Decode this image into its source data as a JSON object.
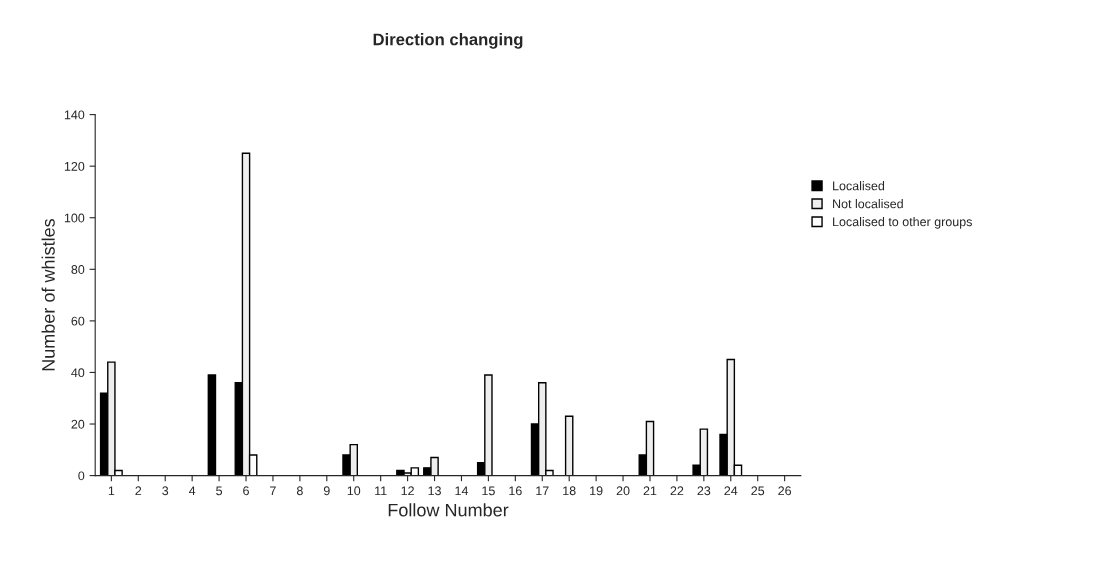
{
  "chart_data": {
    "type": "bar",
    "title": "Direction changing",
    "xlabel": "Follow Number",
    "ylabel": "Number of whistles",
    "categories": [
      "1",
      "2",
      "3",
      "4",
      "5",
      "6",
      "7",
      "8",
      "9",
      "10",
      "11",
      "12",
      "13",
      "14",
      "15",
      "16",
      "17",
      "18",
      "19",
      "20",
      "21",
      "22",
      "23",
      "24",
      "25",
      "26"
    ],
    "series": [
      {
        "name": "Localised",
        "color": "#000000",
        "values": [
          32,
          null,
          null,
          null,
          39,
          36,
          null,
          null,
          null,
          8,
          null,
          2,
          3,
          null,
          5,
          null,
          20,
          null,
          null,
          null,
          8,
          null,
          4,
          16,
          null,
          null
        ]
      },
      {
        "name": "Not localised",
        "color": "#eeeeee",
        "values": [
          44,
          null,
          null,
          null,
          null,
          125,
          null,
          null,
          null,
          12,
          null,
          1,
          7,
          null,
          39,
          null,
          36,
          23,
          null,
          null,
          21,
          null,
          18,
          45,
          null,
          null
        ]
      },
      {
        "name": "Localised to other groups",
        "color": "#ffffff",
        "values": [
          2,
          null,
          null,
          null,
          null,
          8,
          null,
          null,
          null,
          null,
          null,
          3,
          null,
          null,
          null,
          null,
          2,
          null,
          null,
          null,
          null,
          null,
          null,
          4,
          null,
          null
        ]
      }
    ],
    "ylim": [
      0,
      140
    ],
    "yticks": [
      0,
      20,
      40,
      60,
      80,
      100,
      120,
      140
    ],
    "grid": false,
    "legend": "right"
  }
}
